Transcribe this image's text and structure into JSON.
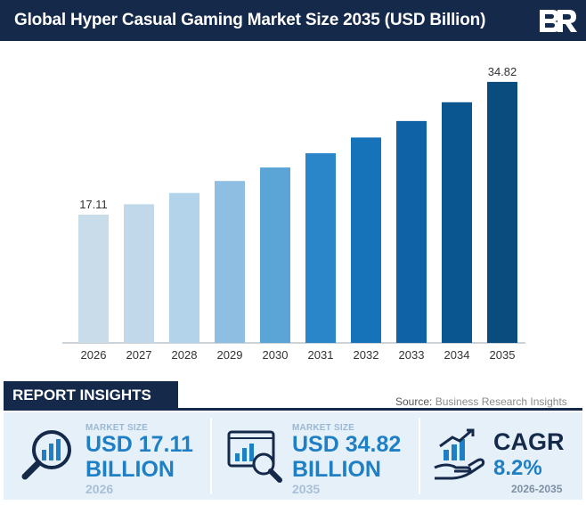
{
  "header": {
    "title": "Global Hyper Casual Gaming Market Size 2035 (USD Billion)",
    "logo_text": "BR"
  },
  "chart_data": {
    "type": "bar",
    "title": "Global Hyper Casual Gaming Market Size 2035 (USD Billion)",
    "categories": [
      "2026",
      "2027",
      "2028",
      "2029",
      "2030",
      "2031",
      "2032",
      "2033",
      "2034",
      "2035"
    ],
    "values": [
      17.11,
      18.5,
      20.0,
      21.6,
      23.4,
      25.3,
      27.4,
      29.6,
      32.1,
      34.82
    ],
    "data_labels": {
      "2026": "17.11",
      "2035": "34.82"
    },
    "colors": [
      "#c9dcea",
      "#c0d8e9",
      "#b2d3e9",
      "#8ebfe2",
      "#5aa4d6",
      "#2a86c9",
      "#1673b9",
      "#0f62a5",
      "#0a5690",
      "#0a4c7d"
    ],
    "ylim": [
      0,
      36
    ],
    "grid": false,
    "legend": "none"
  },
  "insights": {
    "heading": "REPORT INSIGHTS",
    "source_label": "Source:",
    "source_value": "Business Research Insights",
    "cards": [
      {
        "label": "MARKET SIZE",
        "value": "USD 17.11",
        "unit": "BILLION",
        "year": "2026",
        "icon": "magnifier-chart-icon"
      },
      {
        "label": "MARKET SIZE",
        "value": "USD 34.82",
        "unit": "BILLION",
        "year": "2035",
        "icon": "monitor-analytics-icon"
      }
    ],
    "cagr": {
      "title": "CAGR",
      "value": "8.2%",
      "range": "2026-2035",
      "icon": "hand-growth-chart-icon"
    }
  }
}
